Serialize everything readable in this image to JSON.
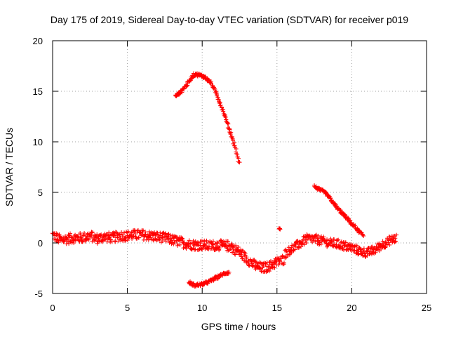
{
  "chart_data": {
    "type": "scatter",
    "title": "Day 175 of 2019, Sidereal Day-to-day VTEC variation (SDTVAR) for receiver p019",
    "xlabel": "GPS time / hours",
    "ylabel": "SDTVAR / TECUs",
    "xlim": [
      0,
      25
    ],
    "ylim": [
      -5,
      20
    ],
    "grid": true,
    "x_ticks": [
      0,
      5,
      10,
      15,
      20,
      25
    ],
    "y_ticks": [
      -5,
      0,
      5,
      10,
      15,
      20
    ],
    "x_tick_labels": [
      "0",
      "5",
      "10",
      "15",
      "20",
      "25"
    ],
    "y_tick_labels": [
      "-5",
      "0",
      "5",
      "10",
      "15",
      "20"
    ],
    "marker_color": "#ff0000",
    "series": [
      {
        "name": "main-band-part1",
        "x": [
          0.0,
          0.5,
          1.0,
          1.5,
          2.0,
          2.5,
          3.0,
          3.5,
          4.0,
          4.5,
          5.0,
          5.5,
          6.0,
          6.5,
          7.0,
          7.5,
          8.0,
          8.5,
          9.0,
          9.5,
          10.0,
          10.5,
          11.0,
          11.5,
          12.0
        ],
        "y": [
          0.8,
          0.3,
          0.4,
          0.5,
          0.5,
          0.7,
          0.4,
          0.6,
          0.5,
          0.7,
          0.7,
          0.8,
          0.8,
          0.7,
          0.6,
          0.5,
          0.3,
          0.1,
          -0.1,
          -0.2,
          -0.2,
          -0.3,
          -0.2,
          -0.3,
          -0.3
        ],
        "spread": 0.5
      },
      {
        "name": "main-band-part2",
        "x": [
          12.0,
          12.5,
          13.0,
          13.5,
          14.0,
          14.5,
          15.0,
          15.5
        ],
        "y": [
          -0.5,
          -0.9,
          -1.6,
          -2.2,
          -2.5,
          -2.3,
          -1.9,
          -1.6
        ],
        "spread": 0.5
      },
      {
        "name": "main-band-part3",
        "x": [
          15.5,
          16.0,
          16.5,
          17.0,
          17.5,
          18.0,
          18.5,
          19.0,
          19.5,
          20.0,
          20.5,
          21.0,
          21.5,
          22.0,
          22.5,
          23.0
        ],
        "y": [
          -1.1,
          -0.6,
          -0.1,
          0.4,
          0.4,
          0.2,
          0.0,
          -0.1,
          -0.3,
          -0.5,
          -0.8,
          -1.0,
          -0.7,
          -0.2,
          0.2,
          0.5
        ],
        "spread": 0.45
      },
      {
        "name": "sat-arc-high",
        "x": [
          8.2,
          8.6,
          9.0,
          9.3,
          9.5,
          9.8,
          10.2,
          10.6,
          11.0,
          11.4,
          11.8,
          12.2,
          12.5
        ],
        "y": [
          14.5,
          15.0,
          15.7,
          16.4,
          16.7,
          16.6,
          16.4,
          15.8,
          14.6,
          13.0,
          11.3,
          9.5,
          7.7
        ],
        "spread": 0.15
      },
      {
        "name": "sat-arc-low",
        "x": [
          9.1,
          9.5,
          10.0,
          10.5,
          11.0,
          11.5,
          11.8
        ],
        "y": [
          -3.9,
          -4.2,
          -4.1,
          -3.8,
          -3.4,
          -3.0,
          -2.9
        ],
        "spread": 0.15
      },
      {
        "name": "sat-arc-right",
        "x": [
          17.5,
          17.8,
          18.2,
          18.5,
          19.0,
          19.5,
          20.0,
          20.5,
          20.8
        ],
        "y": [
          5.6,
          5.3,
          5.0,
          4.5,
          3.5,
          2.7,
          1.9,
          1.1,
          0.7
        ],
        "spread": 0.15
      },
      {
        "name": "isolated-points",
        "x": [
          15.2
        ],
        "y": [
          1.4
        ],
        "spread": 0.08
      }
    ]
  }
}
